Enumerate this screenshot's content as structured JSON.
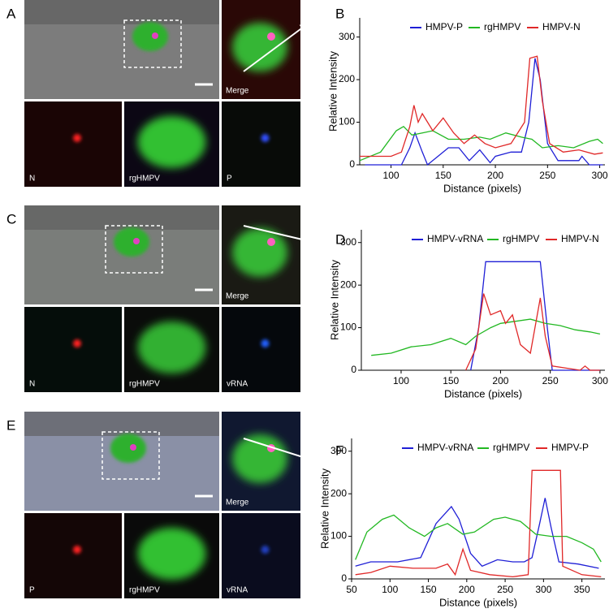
{
  "panels": [
    {
      "panel_label": "A",
      "merge_label": "Merge",
      "channel_labels": [
        "N",
        "rgHMPV",
        "P"
      ]
    },
    {
      "panel_label": "C",
      "merge_label": "Merge",
      "channel_labels": [
        "N",
        "rgHMPV",
        "vRNA"
      ]
    },
    {
      "panel_label": "E",
      "merge_label": "Merge",
      "channel_labels": [
        "P",
        "rgHMPV",
        "vRNA"
      ]
    }
  ],
  "chart_data": [
    {
      "type": "line",
      "panel_label": "B",
      "x_label": "Distance (pixels)",
      "y_label": "Relative Intensity",
      "xlim": [
        70,
        305
      ],
      "ylim": [
        0,
        345
      ],
      "xticks": [
        100,
        150,
        200,
        250,
        300
      ],
      "yticks": [
        0,
        100,
        200,
        300
      ],
      "series": [
        {
          "name": "HMPV-P",
          "color": "#1f1fd6",
          "x": [
            75,
            110,
            118,
            123,
            130,
            135,
            145,
            155,
            165,
            175,
            185,
            195,
            200,
            215,
            225,
            232,
            238,
            243,
            250,
            260,
            280,
            283,
            290,
            303
          ],
          "values": [
            0,
            0,
            40,
            75,
            30,
            0,
            20,
            40,
            40,
            10,
            35,
            5,
            20,
            30,
            30,
            100,
            250,
            200,
            50,
            10,
            10,
            20,
            0,
            0
          ]
        },
        {
          "name": "rgHMPV",
          "color": "#22b822",
          "x": [
            70,
            90,
            105,
            112,
            120,
            130,
            140,
            155,
            170,
            185,
            195,
            210,
            225,
            235,
            245,
            260,
            275,
            290,
            298,
            303
          ],
          "values": [
            10,
            30,
            80,
            90,
            70,
            75,
            80,
            60,
            60,
            65,
            60,
            75,
            65,
            60,
            40,
            45,
            40,
            55,
            60,
            50
          ]
        },
        {
          "name": "HMPV-N",
          "color": "#e02828",
          "x": [
            70,
            100,
            110,
            118,
            122,
            126,
            130,
            140,
            150,
            160,
            170,
            180,
            190,
            200,
            215,
            228,
            233,
            240,
            245,
            252,
            265,
            280,
            295,
            303
          ],
          "values": [
            20,
            20,
            30,
            90,
            140,
            100,
            120,
            80,
            110,
            75,
            50,
            70,
            50,
            40,
            50,
            100,
            250,
            255,
            150,
            50,
            30,
            35,
            25,
            28
          ]
        }
      ]
    },
    {
      "type": "line",
      "panel_label": "D",
      "x_label": "Distance (pixels)",
      "y_label": "Relative Intensity",
      "xlim": [
        60,
        305
      ],
      "ylim": [
        0,
        330
      ],
      "xticks": [
        100,
        150,
        200,
        250,
        300
      ],
      "yticks": [
        0,
        100,
        200,
        300
      ],
      "series": [
        {
          "name": "HMPV-vRNA",
          "color": "#1f1fd6",
          "x": [
            170,
            178,
            185,
            240,
            247,
            252,
            300
          ],
          "values": [
            0,
            100,
            255,
            255,
            100,
            0,
            0
          ]
        },
        {
          "name": "rgHMPV",
          "color": "#22b822",
          "x": [
            70,
            90,
            110,
            130,
            150,
            165,
            175,
            190,
            200,
            215,
            230,
            245,
            260,
            275,
            290,
            300
          ],
          "values": [
            35,
            40,
            55,
            60,
            75,
            60,
            80,
            100,
            110,
            115,
            120,
            110,
            105,
            95,
            90,
            85
          ]
        },
        {
          "name": "HMPV-N",
          "color": "#e02828",
          "x": [
            165,
            175,
            183,
            190,
            200,
            205,
            212,
            220,
            230,
            240,
            245,
            252,
            280,
            285,
            290,
            300
          ],
          "values": [
            0,
            50,
            180,
            130,
            140,
            110,
            130,
            60,
            40,
            170,
            80,
            10,
            0,
            10,
            0,
            0
          ]
        }
      ]
    },
    {
      "type": "line",
      "panel_label": "F",
      "x_label": "Distance (pixels)",
      "y_label": "Relative Intensity",
      "xlim": [
        50,
        380
      ],
      "ylim": [
        0,
        330
      ],
      "xticks": [
        50,
        100,
        150,
        200,
        250,
        300,
        350
      ],
      "yticks": [
        0,
        100,
        200,
        300
      ],
      "series": [
        {
          "name": "HMPV-vRNA",
          "color": "#1f1fd6",
          "x": [
            55,
            75,
            110,
            140,
            160,
            180,
            190,
            205,
            220,
            240,
            260,
            275,
            285,
            295,
            302,
            310,
            320,
            345,
            372
          ],
          "values": [
            30,
            40,
            40,
            50,
            130,
            170,
            140,
            60,
            30,
            45,
            40,
            40,
            50,
            130,
            190,
            120,
            40,
            35,
            25
          ]
        },
        {
          "name": "rgHMPV",
          "color": "#22b822",
          "x": [
            55,
            70,
            90,
            105,
            125,
            145,
            160,
            175,
            195,
            210,
            235,
            250,
            270,
            290,
            310,
            330,
            350,
            365,
            375
          ],
          "values": [
            45,
            110,
            140,
            150,
            120,
            100,
            120,
            130,
            105,
            110,
            140,
            145,
            135,
            105,
            100,
            100,
            85,
            70,
            40
          ]
        },
        {
          "name": "HMPV-P",
          "color": "#e02828",
          "x": [
            55,
            75,
            100,
            130,
            160,
            175,
            185,
            195,
            205,
            230,
            260,
            280,
            285,
            322,
            325,
            350,
            375
          ],
          "values": [
            10,
            15,
            30,
            25,
            25,
            35,
            10,
            70,
            20,
            10,
            5,
            10,
            255,
            255,
            30,
            10,
            5
          ]
        }
      ]
    }
  ]
}
